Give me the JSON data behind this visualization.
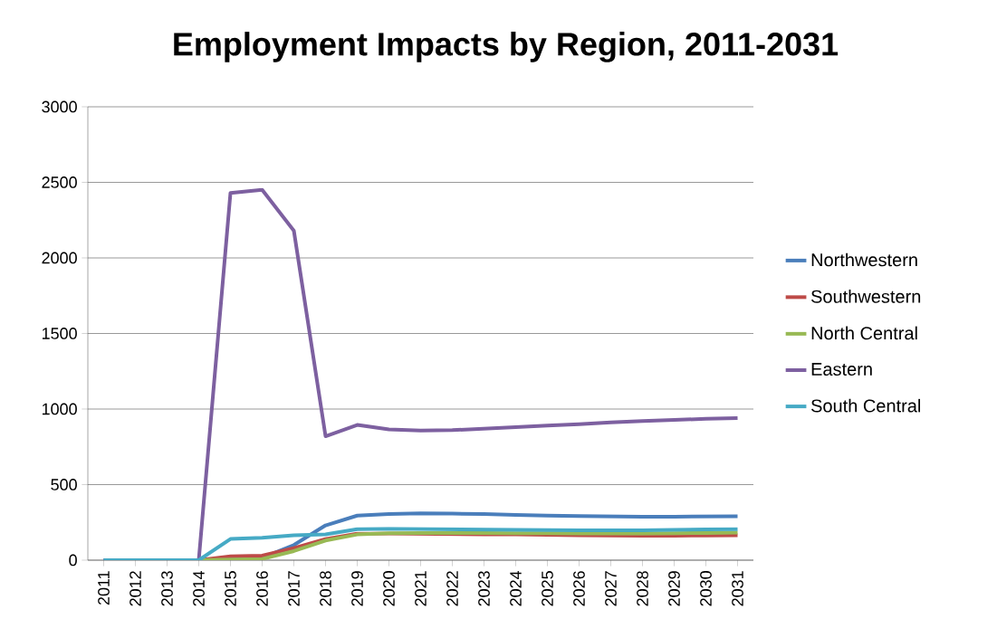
{
  "chart_data": {
    "type": "line",
    "title": "Employment Impacts by Region, 2011-2031",
    "categories": [
      "2011",
      "2012",
      "2013",
      "2014",
      "2015",
      "2016",
      "2017",
      "2018",
      "2019",
      "2020",
      "2021",
      "2022",
      "2023",
      "2024",
      "2025",
      "2026",
      "2027",
      "2028",
      "2029",
      "2030",
      "2031"
    ],
    "series": [
      {
        "name": "Northwestern",
        "color": "#4a7ebb",
        "values": [
          0,
          0,
          0,
          0,
          10,
          15,
          100,
          230,
          295,
          305,
          310,
          308,
          305,
          300,
          295,
          292,
          290,
          288,
          288,
          289,
          290
        ]
      },
      {
        "name": "Southwestern",
        "color": "#be4b48",
        "values": [
          null,
          null,
          0,
          0,
          25,
          30,
          80,
          140,
          175,
          176,
          174,
          172,
          170,
          170,
          168,
          165,
          163,
          162,
          162,
          163,
          165
        ]
      },
      {
        "name": "North Central",
        "color": "#98b954",
        "values": [
          null,
          null,
          0,
          0,
          5,
          8,
          60,
          130,
          170,
          178,
          180,
          180,
          180,
          178,
          178,
          177,
          177,
          177,
          178,
          180,
          182
        ]
      },
      {
        "name": "Eastern",
        "color": "#7d60a0",
        "values": [
          0,
          0,
          0,
          0,
          2430,
          2450,
          2180,
          820,
          895,
          865,
          858,
          860,
          870,
          880,
          890,
          900,
          912,
          920,
          928,
          935,
          940
        ]
      },
      {
        "name": "South Central",
        "color": "#46aac5",
        "values": [
          0,
          0,
          0,
          0,
          140,
          148,
          165,
          170,
          205,
          208,
          206,
          204,
          202,
          200,
          199,
          198,
          198,
          198,
          200,
          203,
          205
        ]
      }
    ],
    "ylim": [
      0,
      3000
    ],
    "yticks": [
      0,
      500,
      1000,
      1500,
      2000,
      2500,
      3000
    ],
    "grid": "y",
    "legend": "right",
    "marker": "none",
    "line_style": "solid"
  }
}
